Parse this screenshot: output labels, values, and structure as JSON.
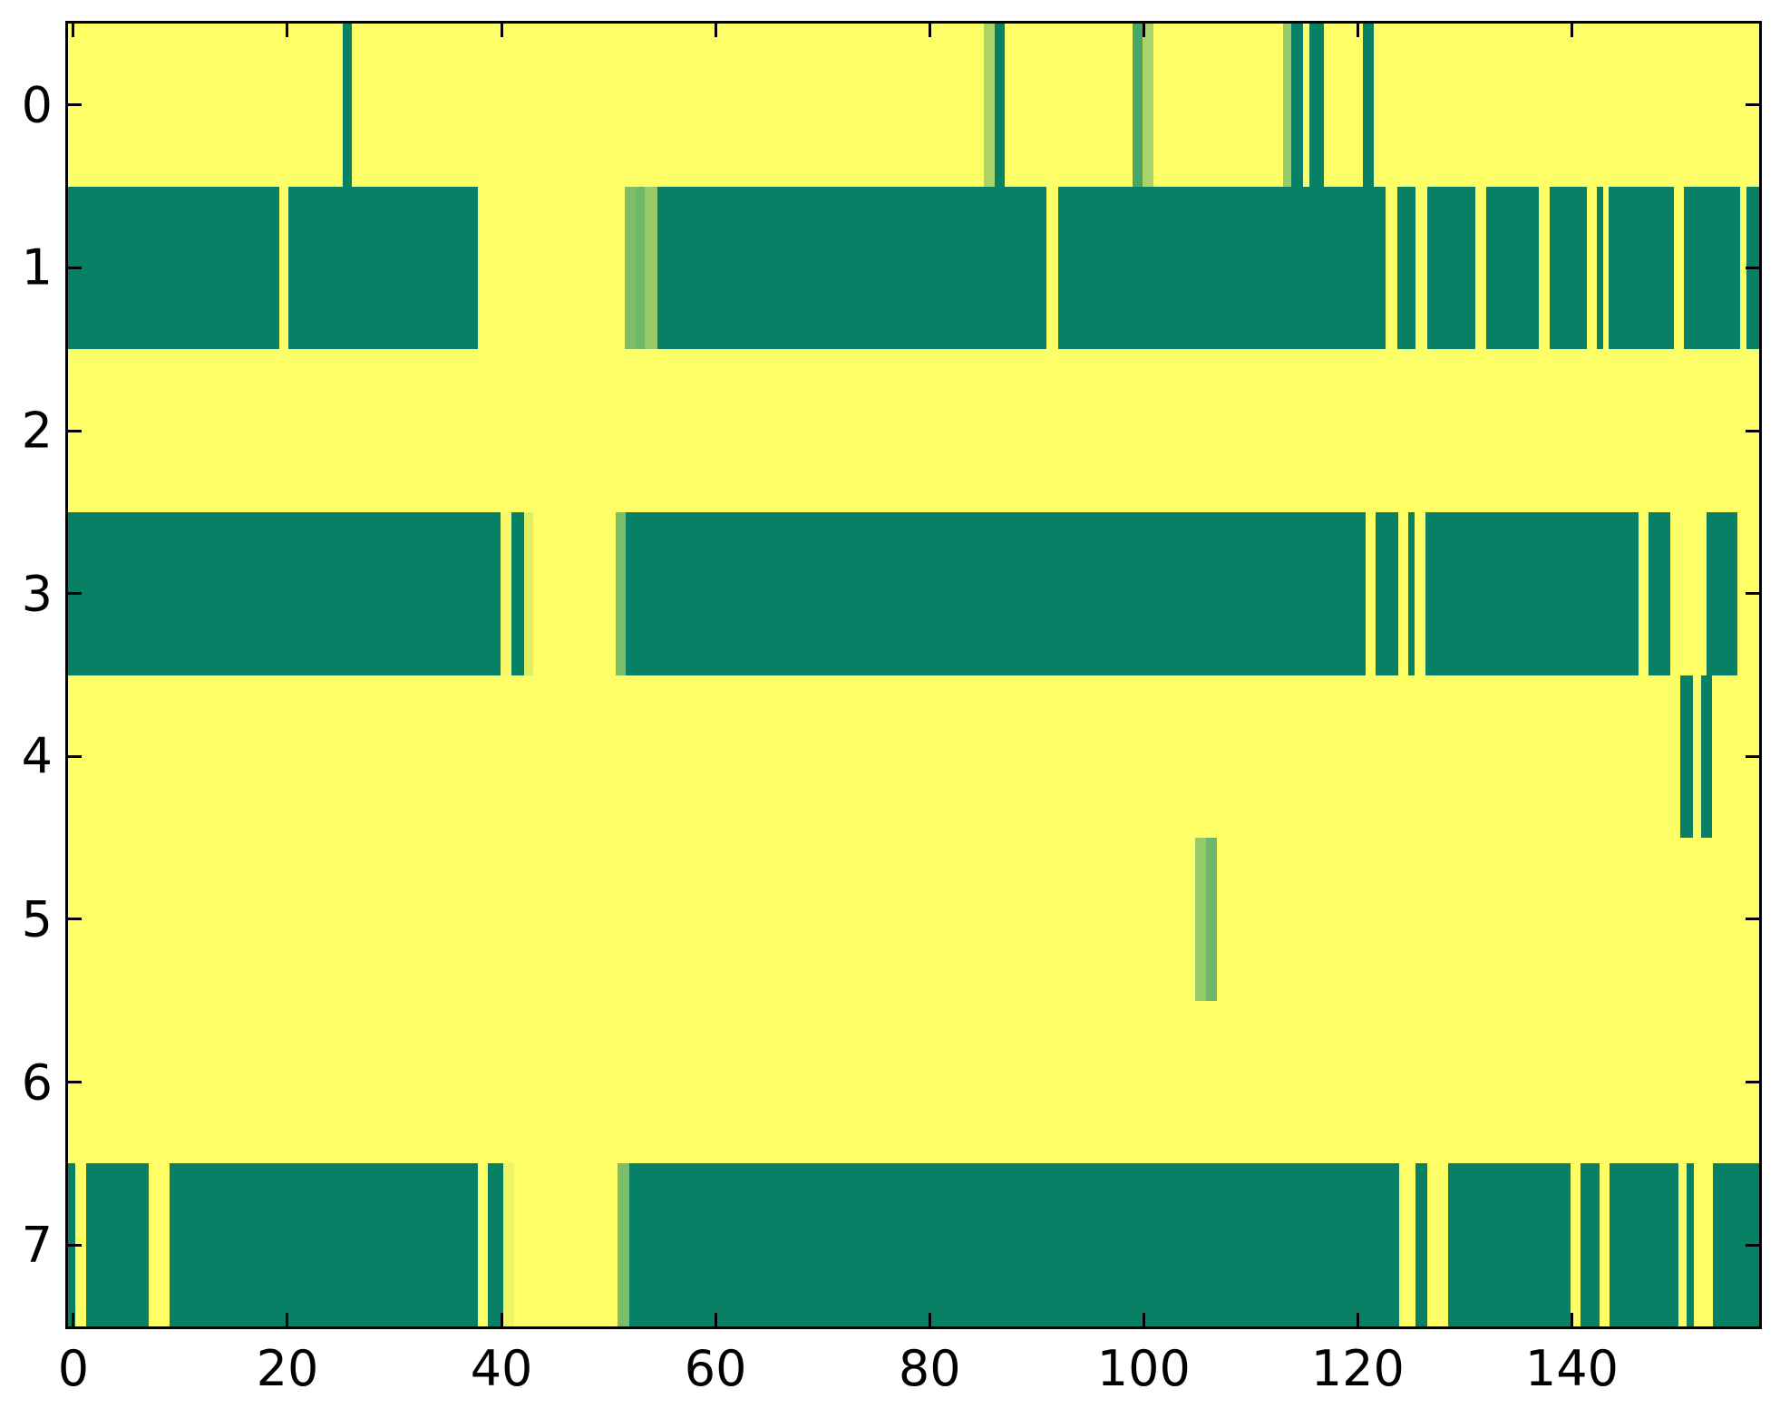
{
  "chart_data": {
    "type": "heatmap",
    "title": "",
    "xlabel": "",
    "ylabel": "",
    "colormap": "summer",
    "n_cols": 158,
    "n_rows": 8,
    "x_axis_range": [
      -0.5,
      157.5
    ],
    "x_ticks": [
      0,
      20,
      40,
      60,
      80,
      100,
      120,
      140
    ],
    "x_tick_labels": [
      "0",
      "20",
      "40",
      "60",
      "80",
      "100",
      "120",
      "140"
    ],
    "y_ticks": [
      0,
      1,
      2,
      3,
      4,
      5,
      6,
      7
    ],
    "y_tick_labels": [
      "0",
      "1",
      "2",
      "3",
      "4",
      "5",
      "6",
      "7"
    ],
    "grid": false,
    "legend": false,
    "palette": {
      "bg": "#FEFE66",
      "teal": "#078066",
      "g30": "#4AA569",
      "g45": "#6CB868",
      "g50": "#7CBE69",
      "g60": "#97CA68",
      "g65": "#A8D468",
      "g85": "#E2EE66",
      "g92": "#EEF567",
      "g96": "#F5F868"
    },
    "rows": [
      {
        "y": 0,
        "default": "bg",
        "segments": [
          [
            25.7,
            26.5,
            "teal"
          ],
          [
            85.6,
            86.6,
            "g65"
          ],
          [
            86.6,
            87.5,
            "teal"
          ],
          [
            99.5,
            100.4,
            "g30"
          ],
          [
            100.4,
            101.4,
            "g65"
          ],
          [
            113.5,
            114.3,
            "g60"
          ],
          [
            114.3,
            115.4,
            "teal"
          ],
          [
            116.0,
            117.3,
            "teal"
          ],
          [
            121.0,
            122.0,
            "teal"
          ]
        ]
      },
      {
        "y": 1,
        "default": "bg",
        "segments": [
          [
            0,
            19.7,
            "teal"
          ],
          [
            20.6,
            38.3,
            "teal"
          ],
          [
            52.0,
            53.1,
            "g50"
          ],
          [
            53.1,
            53.9,
            "g45"
          ],
          [
            53.9,
            55.1,
            "g60"
          ],
          [
            55.1,
            91.4,
            "teal"
          ],
          [
            92.5,
            123.1,
            "teal"
          ],
          [
            124.2,
            125.9,
            "teal"
          ],
          [
            127.0,
            131.5,
            "teal"
          ],
          [
            132.5,
            137.4,
            "teal"
          ],
          [
            138.4,
            141.9,
            "teal"
          ],
          [
            142.8,
            143.4,
            "teal"
          ],
          [
            143.9,
            150.0,
            "teal"
          ],
          [
            151.0,
            156.2,
            "teal"
          ],
          [
            156.8,
            158,
            "teal"
          ]
        ]
      },
      {
        "y": 2,
        "default": "bg",
        "segments": []
      },
      {
        "y": 3,
        "default": "bg",
        "segments": [
          [
            0,
            40.4,
            "teal"
          ],
          [
            40.4,
            41.4,
            "g96"
          ],
          [
            41.4,
            42.6,
            "teal"
          ],
          [
            42.6,
            43.5,
            "g85"
          ],
          [
            51.2,
            52.1,
            "g50"
          ],
          [
            52.1,
            121.2,
            "teal"
          ],
          [
            122.2,
            124.3,
            "teal"
          ],
          [
            125.2,
            125.8,
            "teal"
          ],
          [
            126.8,
            146.7,
            "teal"
          ],
          [
            147.7,
            149.7,
            "teal"
          ],
          [
            153.1,
            156.0,
            "teal"
          ]
        ]
      },
      {
        "y": 4,
        "default": "bg",
        "segments": [
          [
            150.6,
            151.8,
            "teal"
          ],
          [
            152.6,
            153.6,
            "teal"
          ]
        ]
      },
      {
        "y": 5,
        "default": "bg",
        "segments": [
          [
            105.3,
            106.3,
            "g60"
          ],
          [
            106.3,
            107.3,
            "g45"
          ]
        ]
      },
      {
        "y": 6,
        "default": "bg",
        "segments": []
      },
      {
        "y": 7,
        "default": "bg",
        "segments": [
          [
            0,
            0.7,
            "teal"
          ],
          [
            1.7,
            7.5,
            "teal"
          ],
          [
            9.5,
            38.3,
            "teal"
          ],
          [
            39.25,
            40.7,
            "teal"
          ],
          [
            40.7,
            41.65,
            "g92"
          ],
          [
            51.3,
            52.4,
            "g50"
          ],
          [
            52.4,
            124.4,
            "teal"
          ],
          [
            125.9,
            127.0,
            "teal"
          ],
          [
            128.9,
            140.4,
            "teal"
          ],
          [
            141.3,
            143.1,
            "teal"
          ],
          [
            144.0,
            150.5,
            "teal"
          ],
          [
            151.2,
            151.9,
            "teal"
          ],
          [
            153.7,
            158,
            "teal"
          ]
        ]
      }
    ]
  }
}
